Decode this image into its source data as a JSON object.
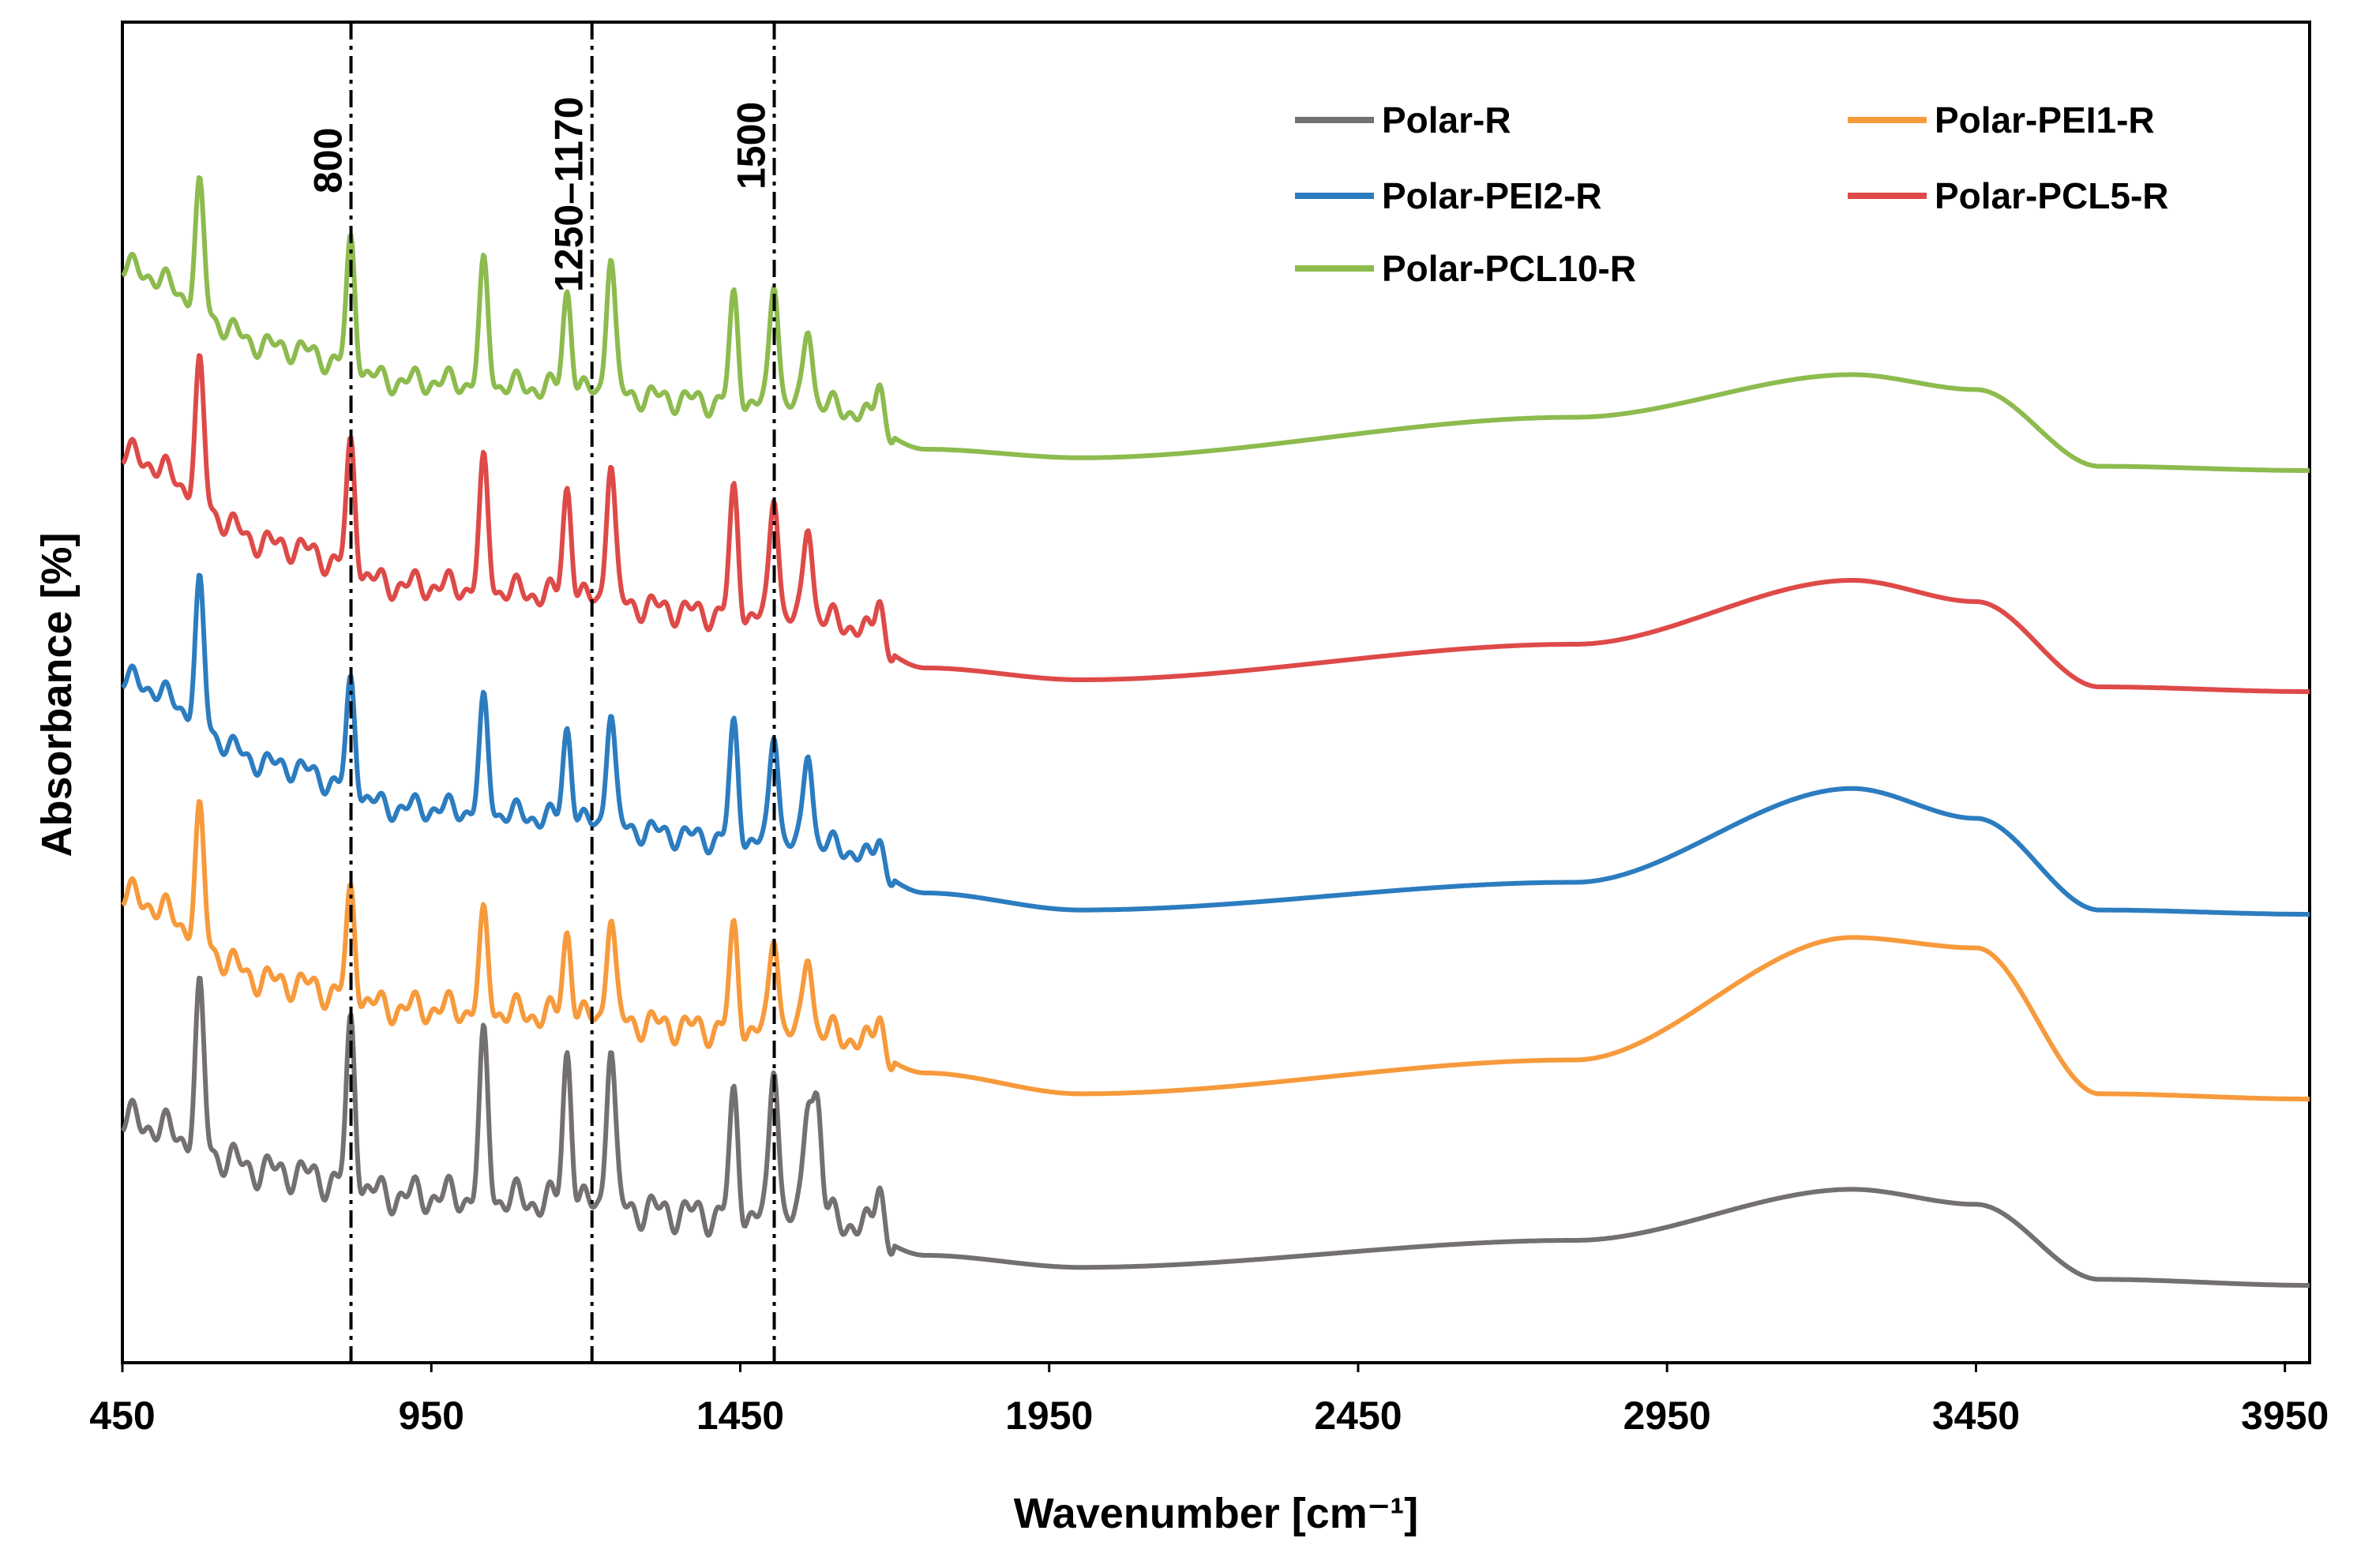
{
  "chart_data": {
    "type": "line",
    "title": "",
    "xlabel": "Wavenumber [cm⁻¹]",
    "ylabel": "Absorbance [%]",
    "xlim": [
      450,
      3990
    ],
    "x_ticks": [
      "450",
      "950",
      "1450",
      "1950",
      "2450",
      "2950",
      "3450",
      "3950"
    ],
    "y_ticks": [],
    "grid": false,
    "legend_position": "top-right",
    "annotations": [
      {
        "label": "800",
        "x": 820
      },
      {
        "label": "1250–1170",
        "x": 1210
      },
      {
        "label": "1500",
        "x": 1505
      }
    ],
    "series": [
      {
        "name": "Polar-R",
        "color": "#747070",
        "peaks": [
          [
            575,
            0.91
          ],
          [
            820,
            1.0
          ],
          [
            1035,
            0.93
          ],
          [
            1170,
            0.93
          ],
          [
            1240,
            1.0
          ],
          [
            1440,
            0.72
          ],
          [
            1505,
            0.98
          ],
          [
            1560,
            0.72
          ],
          [
            1575,
            0.68
          ],
          [
            1675,
            0.35
          ],
          [
            3250,
            0.32
          ]
        ],
        "baseline": [
          [
            450,
            0.55
          ],
          [
            700,
            0.38
          ],
          [
            900,
            0.3
          ],
          [
            1600,
            0.22
          ],
          [
            1750,
            0.1
          ],
          [
            2000,
            0.06
          ],
          [
            2800,
            0.15
          ],
          [
            3250,
            0.32
          ],
          [
            3450,
            0.27
          ],
          [
            3650,
            0.02
          ],
          [
            3990,
            0.0
          ]
        ]
      },
      {
        "name": "Polar-PEI1-R",
        "color": "#f79a3c",
        "peaks": [
          [
            575,
            0.85
          ],
          [
            820,
            0.75
          ],
          [
            1035,
            0.62
          ],
          [
            1170,
            0.6
          ],
          [
            1240,
            0.75
          ],
          [
            1440,
            0.7
          ],
          [
            1505,
            0.73
          ],
          [
            1560,
            0.6
          ],
          [
            1675,
            0.3
          ],
          [
            3250,
            0.62
          ]
        ],
        "baseline": [
          [
            450,
            0.78
          ],
          [
            700,
            0.45
          ],
          [
            900,
            0.35
          ],
          [
            1600,
            0.25
          ],
          [
            1750,
            0.1
          ],
          [
            2000,
            0.02
          ],
          [
            2800,
            0.15
          ],
          [
            3250,
            0.62
          ],
          [
            3450,
            0.58
          ],
          [
            3650,
            0.02
          ],
          [
            3990,
            0.0
          ]
        ]
      },
      {
        "name": "Polar-PEI2-R",
        "color": "#2c7cc0",
        "peaks": [
          [
            575,
            1.15
          ],
          [
            820,
            0.95
          ],
          [
            1035,
            0.9
          ],
          [
            1170,
            0.8
          ],
          [
            1240,
            1.0
          ],
          [
            1440,
            0.98
          ],
          [
            1505,
            1.0
          ],
          [
            1560,
            0.85
          ],
          [
            1675,
            0.3
          ],
          [
            3250,
            0.59
          ]
        ],
        "baseline": [
          [
            450,
            1.1
          ],
          [
            700,
            0.7
          ],
          [
            900,
            0.5
          ],
          [
            1600,
            0.32
          ],
          [
            1750,
            0.1
          ],
          [
            2000,
            0.02
          ],
          [
            2800,
            0.15
          ],
          [
            3250,
            0.59
          ],
          [
            3450,
            0.45
          ],
          [
            3650,
            0.02
          ],
          [
            3990,
            0.0
          ]
        ]
      },
      {
        "name": "Polar-PCL5-R",
        "color": "#dd4a48",
        "peaks": [
          [
            575,
            1.0
          ],
          [
            820,
            0.98
          ],
          [
            1035,
            0.93
          ],
          [
            1170,
            0.85
          ],
          [
            1240,
            1.1
          ],
          [
            1440,
            0.95
          ],
          [
            1505,
            1.0
          ],
          [
            1560,
            0.78
          ],
          [
            1675,
            0.38
          ],
          [
            3250,
            0.47
          ]
        ],
        "baseline": [
          [
            450,
            1.0
          ],
          [
            700,
            0.62
          ],
          [
            900,
            0.45
          ],
          [
            1600,
            0.3
          ],
          [
            1750,
            0.1
          ],
          [
            2000,
            0.05
          ],
          [
            2800,
            0.2
          ],
          [
            3250,
            0.47
          ],
          [
            3450,
            0.38
          ],
          [
            3650,
            0.02
          ],
          [
            3990,
            0.0
          ]
        ]
      },
      {
        "name": "Polar-PCL10-R",
        "color": "#8dbb4e",
        "peaks": [
          [
            575,
            1.0
          ],
          [
            820,
            1.1
          ],
          [
            1035,
            0.98
          ],
          [
            1170,
            0.85
          ],
          [
            1240,
            1.2
          ],
          [
            1440,
            0.9
          ],
          [
            1505,
            1.1
          ],
          [
            1560,
            0.72
          ],
          [
            1675,
            0.42
          ],
          [
            3250,
            0.45
          ]
        ],
        "baseline": [
          [
            450,
            0.95
          ],
          [
            700,
            0.58
          ],
          [
            900,
            0.42
          ],
          [
            1600,
            0.3
          ],
          [
            1750,
            0.1
          ],
          [
            2000,
            0.06
          ],
          [
            2800,
            0.25
          ],
          [
            3250,
            0.45
          ],
          [
            3450,
            0.38
          ],
          [
            3650,
            0.02
          ],
          [
            3990,
            0.0
          ]
        ]
      }
    ]
  }
}
